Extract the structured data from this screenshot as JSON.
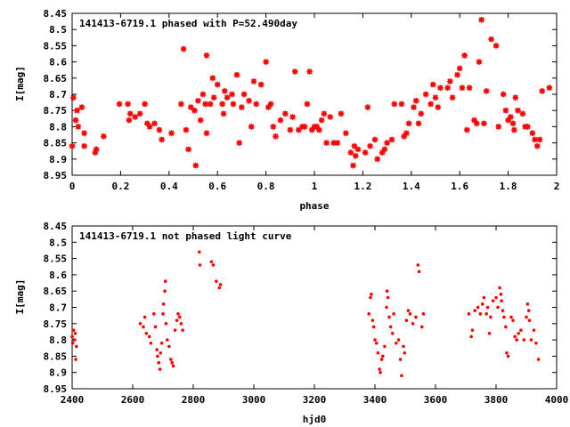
{
  "chart_data": [
    {
      "type": "scatter",
      "title": "141413-6719.1 phased with P=52.490day",
      "xlabel": "phase",
      "ylabel": "I[mag]",
      "xlim": [
        0,
        2
      ],
      "ylim": [
        8.95,
        8.45
      ],
      "y_reversed": true,
      "x_ticks": [
        0,
        0.2,
        0.4,
        0.6,
        0.8,
        1,
        1.2,
        1.4,
        1.6,
        1.8,
        2
      ],
      "x_tick_labels": [
        "0",
        "0.2",
        "0.4",
        "0.6",
        "0.8",
        "1",
        "1.2",
        "1.4",
        "1.6",
        "1.8",
        "2"
      ],
      "y_ticks": [
        8.45,
        8.5,
        8.55,
        8.6,
        8.65,
        8.7,
        8.75,
        8.8,
        8.85,
        8.9,
        8.95
      ],
      "y_tick_labels": [
        "8.45",
        "8.5",
        "8.55",
        "8.6",
        "8.65",
        "8.7",
        "8.75",
        "8.8",
        "8.85",
        "8.9",
        "8.95"
      ],
      "marker_color": "#ff0000",
      "grid": false,
      "points": [
        [
          0.0,
          8.86
        ],
        [
          0.005,
          8.71
        ],
        [
          0.015,
          8.78
        ],
        [
          0.02,
          8.75
        ],
        [
          0.025,
          8.8
        ],
        [
          0.04,
          8.74
        ],
        [
          0.05,
          8.82
        ],
        [
          0.05,
          8.86
        ],
        [
          0.095,
          8.88
        ],
        [
          0.1,
          8.87
        ],
        [
          0.13,
          8.83
        ],
        [
          0.195,
          8.73
        ],
        [
          0.23,
          8.73
        ],
        [
          0.235,
          8.78
        ],
        [
          0.24,
          8.76
        ],
        [
          0.26,
          8.77
        ],
        [
          0.28,
          8.76
        ],
        [
          0.3,
          8.73
        ],
        [
          0.31,
          8.79
        ],
        [
          0.32,
          8.8
        ],
        [
          0.34,
          8.79
        ],
        [
          0.36,
          8.81
        ],
        [
          0.37,
          8.84
        ],
        [
          0.41,
          8.82
        ],
        [
          0.45,
          8.73
        ],
        [
          0.46,
          8.56
        ],
        [
          0.47,
          8.81
        ],
        [
          0.48,
          8.87
        ],
        [
          0.49,
          8.74
        ],
        [
          0.505,
          8.75
        ],
        [
          0.51,
          8.92
        ],
        [
          0.52,
          8.72
        ],
        [
          0.53,
          8.78
        ],
        [
          0.54,
          8.7
        ],
        [
          0.55,
          8.73
        ],
        [
          0.555,
          8.58
        ],
        [
          0.555,
          8.82
        ],
        [
          0.57,
          8.73
        ],
        [
          0.58,
          8.65
        ],
        [
          0.585,
          8.71
        ],
        [
          0.6,
          8.67
        ],
        [
          0.62,
          8.73
        ],
        [
          0.625,
          8.76
        ],
        [
          0.63,
          8.69
        ],
        [
          0.64,
          8.71
        ],
        [
          0.66,
          8.7
        ],
        [
          0.665,
          8.73
        ],
        [
          0.68,
          8.64
        ],
        [
          0.69,
          8.85
        ],
        [
          0.7,
          8.74
        ],
        [
          0.71,
          8.7
        ],
        [
          0.73,
          8.72
        ],
        [
          0.74,
          8.8
        ],
        [
          0.75,
          8.66
        ],
        [
          0.76,
          8.73
        ],
        [
          0.78,
          8.67
        ],
        [
          0.8,
          8.6
        ],
        [
          0.81,
          8.74
        ],
        [
          0.82,
          8.73
        ],
        [
          0.83,
          8.8
        ],
        [
          0.84,
          8.83
        ],
        [
          0.86,
          8.78
        ],
        [
          0.88,
          8.76
        ],
        [
          0.9,
          8.81
        ],
        [
          0.91,
          8.77
        ],
        [
          0.92,
          8.63
        ],
        [
          0.935,
          8.81
        ],
        [
          0.95,
          8.8
        ],
        [
          0.96,
          8.8
        ],
        [
          0.97,
          8.73
        ],
        [
          0.98,
          8.63
        ],
        [
          0.99,
          8.81
        ],
        [
          1.0,
          8.8
        ],
        [
          1.01,
          8.8
        ],
        [
          1.02,
          8.81
        ],
        [
          1.03,
          8.78
        ],
        [
          1.04,
          8.76
        ],
        [
          1.05,
          8.85
        ],
        [
          1.065,
          8.77
        ],
        [
          1.08,
          8.85
        ],
        [
          1.095,
          8.85
        ],
        [
          1.11,
          8.76
        ],
        [
          1.13,
          8.82
        ],
        [
          1.15,
          8.88
        ],
        [
          1.16,
          8.92
        ],
        [
          1.165,
          8.86
        ],
        [
          1.17,
          8.89
        ],
        [
          1.18,
          8.87
        ],
        [
          1.21,
          8.88
        ],
        [
          1.22,
          8.74
        ],
        [
          1.23,
          8.86
        ],
        [
          1.25,
          8.84
        ],
        [
          1.26,
          8.9
        ],
        [
          1.28,
          8.88
        ],
        [
          1.29,
          8.87
        ],
        [
          1.3,
          8.85
        ],
        [
          1.32,
          8.84
        ],
        [
          1.33,
          8.73
        ],
        [
          1.36,
          8.73
        ],
        [
          1.37,
          8.83
        ],
        [
          1.38,
          8.82
        ],
        [
          1.39,
          8.79
        ],
        [
          1.41,
          8.74
        ],
        [
          1.42,
          8.72
        ],
        [
          1.43,
          8.79
        ],
        [
          1.44,
          8.76
        ],
        [
          1.46,
          8.7
        ],
        [
          1.48,
          8.73
        ],
        [
          1.49,
          8.67
        ],
        [
          1.5,
          8.71
        ],
        [
          1.51,
          8.74
        ],
        [
          1.52,
          8.68
        ],
        [
          1.55,
          8.68
        ],
        [
          1.56,
          8.66
        ],
        [
          1.57,
          8.71
        ],
        [
          1.59,
          8.64
        ],
        [
          1.6,
          8.62
        ],
        [
          1.61,
          8.68
        ],
        [
          1.62,
          8.58
        ],
        [
          1.63,
          8.81
        ],
        [
          1.64,
          8.68
        ],
        [
          1.66,
          8.78
        ],
        [
          1.67,
          8.79
        ],
        [
          1.68,
          8.6
        ],
        [
          1.69,
          8.47
        ],
        [
          1.7,
          8.79
        ],
        [
          1.71,
          8.69
        ],
        [
          1.73,
          8.53
        ],
        [
          1.75,
          8.55
        ],
        [
          1.76,
          8.8
        ],
        [
          1.78,
          8.7
        ],
        [
          1.79,
          8.75
        ],
        [
          1.8,
          8.78
        ],
        [
          1.81,
          8.77
        ],
        [
          1.82,
          8.79
        ],
        [
          1.825,
          8.81
        ],
        [
          1.83,
          8.71
        ],
        [
          1.84,
          8.75
        ],
        [
          1.86,
          8.76
        ],
        [
          1.87,
          8.8
        ],
        [
          1.88,
          8.8
        ],
        [
          1.9,
          8.82
        ],
        [
          1.91,
          8.84
        ],
        [
          1.92,
          8.86
        ],
        [
          1.93,
          8.84
        ],
        [
          1.94,
          8.69
        ],
        [
          1.97,
          8.68
        ]
      ]
    },
    {
      "type": "scatter",
      "title": "141413-6719.1 not phased light curve",
      "xlabel": "hjd0",
      "ylabel": "I[mag]",
      "xlim": [
        2400,
        4000
      ],
      "ylim": [
        8.95,
        8.45
      ],
      "y_reversed": true,
      "x_ticks": [
        2400,
        2600,
        2800,
        3000,
        3200,
        3400,
        3600,
        3800,
        4000
      ],
      "x_tick_labels": [
        "2400",
        "2600",
        "2800",
        "3000",
        "3200",
        "3400",
        "3600",
        "3800",
        "4000"
      ],
      "y_ticks": [
        8.45,
        8.5,
        8.55,
        8.6,
        8.65,
        8.7,
        8.75,
        8.8,
        8.85,
        8.9,
        8.95
      ],
      "y_tick_labels": [
        "8.45",
        "8.5",
        "8.55",
        "8.6",
        "8.65",
        "8.7",
        "8.75",
        "8.8",
        "8.85",
        "8.9",
        "8.95"
      ],
      "marker_color": "#ff0000",
      "grid": false,
      "points": [
        [
          2400,
          8.79
        ],
        [
          2402,
          8.81
        ],
        [
          2405,
          8.77
        ],
        [
          2407,
          8.8
        ],
        [
          2410,
          8.78
        ],
        [
          2412,
          8.86
        ],
        [
          2414,
          8.82
        ],
        [
          2625,
          8.75
        ],
        [
          2635,
          8.76
        ],
        [
          2640,
          8.73
        ],
        [
          2645,
          8.78
        ],
        [
          2655,
          8.79
        ],
        [
          2660,
          8.81
        ],
        [
          2670,
          8.72
        ],
        [
          2675,
          8.76
        ],
        [
          2680,
          8.83
        ],
        [
          2682,
          8.85
        ],
        [
          2686,
          8.87
        ],
        [
          2690,
          8.89
        ],
        [
          2692,
          8.84
        ],
        [
          2696,
          8.81
        ],
        [
          2700,
          8.72
        ],
        [
          2702,
          8.69
        ],
        [
          2706,
          8.65
        ],
        [
          2708,
          8.62
        ],
        [
          2710,
          8.75
        ],
        [
          2714,
          8.8
        ],
        [
          2720,
          8.82
        ],
        [
          2726,
          8.86
        ],
        [
          2730,
          8.87
        ],
        [
          2734,
          8.88
        ],
        [
          2740,
          8.77
        ],
        [
          2746,
          8.74
        ],
        [
          2750,
          8.72
        ],
        [
          2755,
          8.73
        ],
        [
          2760,
          8.75
        ],
        [
          2765,
          8.77
        ],
        [
          2820,
          8.53
        ],
        [
          2822,
          8.57
        ],
        [
          2860,
          8.56
        ],
        [
          2866,
          8.57
        ],
        [
          2876,
          8.62
        ],
        [
          2886,
          8.64
        ],
        [
          2890,
          8.63
        ],
        [
          3380,
          8.72
        ],
        [
          3385,
          8.67
        ],
        [
          3388,
          8.66
        ],
        [
          3392,
          8.74
        ],
        [
          3396,
          8.76
        ],
        [
          3400,
          8.8
        ],
        [
          3405,
          8.81
        ],
        [
          3410,
          8.84
        ],
        [
          3415,
          8.89
        ],
        [
          3418,
          8.9
        ],
        [
          3422,
          8.86
        ],
        [
          3426,
          8.85
        ],
        [
          3432,
          8.82
        ],
        [
          3438,
          8.7
        ],
        [
          3440,
          8.65
        ],
        [
          3443,
          8.67
        ],
        [
          3447,
          8.73
        ],
        [
          3452,
          8.76
        ],
        [
          3458,
          8.78
        ],
        [
          3462,
          8.72
        ],
        [
          3470,
          8.81
        ],
        [
          3478,
          8.8
        ],
        [
          3484,
          8.86
        ],
        [
          3488,
          8.91
        ],
        [
          3494,
          8.82
        ],
        [
          3498,
          8.84
        ],
        [
          3504,
          8.74
        ],
        [
          3510,
          8.71
        ],
        [
          3516,
          8.72
        ],
        [
          3525,
          8.75
        ],
        [
          3535,
          8.73
        ],
        [
          3542,
          8.57
        ],
        [
          3546,
          8.59
        ],
        [
          3555,
          8.76
        ],
        [
          3560,
          8.72
        ],
        [
          3710,
          8.72
        ],
        [
          3718,
          8.79
        ],
        [
          3722,
          8.77
        ],
        [
          3730,
          8.71
        ],
        [
          3740,
          8.7
        ],
        [
          3748,
          8.72
        ],
        [
          3755,
          8.69
        ],
        [
          3760,
          8.67
        ],
        [
          3768,
          8.72
        ],
        [
          3772,
          8.7
        ],
        [
          3778,
          8.78
        ],
        [
          3782,
          8.73
        ],
        [
          3790,
          8.68
        ],
        [
          3800,
          8.67
        ],
        [
          3806,
          8.7
        ],
        [
          3812,
          8.64
        ],
        [
          3816,
          8.66
        ],
        [
          3818,
          8.68
        ],
        [
          3822,
          8.71
        ],
        [
          3826,
          8.73
        ],
        [
          3832,
          8.76
        ],
        [
          3835,
          8.84
        ],
        [
          3840,
          8.85
        ],
        [
          3850,
          8.73
        ],
        [
          3856,
          8.74
        ],
        [
          3862,
          8.79
        ],
        [
          3868,
          8.8
        ],
        [
          3874,
          8.78
        ],
        [
          3882,
          8.77
        ],
        [
          3892,
          8.8
        ],
        [
          3900,
          8.73
        ],
        [
          3904,
          8.69
        ],
        [
          3908,
          8.71
        ],
        [
          3910,
          8.74
        ],
        [
          3916,
          8.8
        ],
        [
          3925,
          8.77
        ],
        [
          3932,
          8.81
        ],
        [
          3940,
          8.86
        ]
      ]
    }
  ]
}
